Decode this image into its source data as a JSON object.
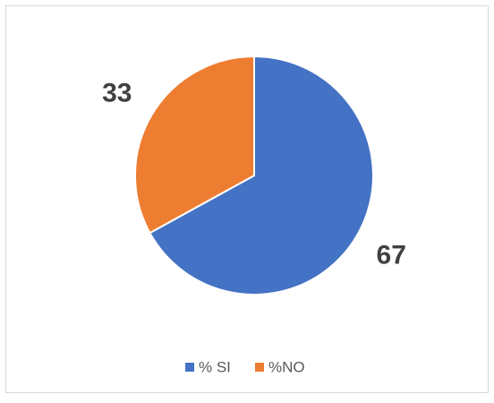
{
  "chart_data": {
    "type": "pie",
    "categories": [
      "% SI",
      "%NO"
    ],
    "values": [
      67,
      33
    ],
    "colors": [
      "#4472c4",
      "#ed7d31"
    ],
    "legend": "bottom"
  }
}
